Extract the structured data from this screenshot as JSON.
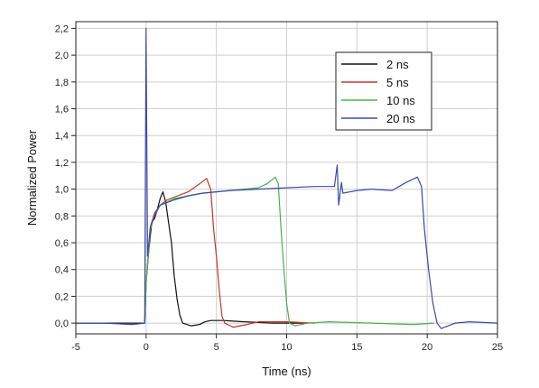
{
  "chart_data": {
    "type": "line",
    "xlabel": "Time (ns)",
    "ylabel": "Normalized Power",
    "xlim": [
      -5,
      25
    ],
    "ylim": [
      -0.08,
      2.25
    ],
    "grid": true,
    "legend_position": "top-right",
    "x_ticks": [
      "-5",
      "0",
      "5",
      "10",
      "15",
      "20",
      "25"
    ],
    "y_ticks": [
      "0,0",
      "0,2",
      "0,4",
      "0,6",
      "0,8",
      "1,0",
      "1,2",
      "1,4",
      "1,6",
      "1,8",
      "2,0",
      "2,2"
    ],
    "series": [
      {
        "name": "2 ns",
        "color": "#111111",
        "points": [
          [
            -5,
            0.0
          ],
          [
            -0.1,
            0.0
          ],
          [
            0,
            0.3
          ],
          [
            0.2,
            0.55
          ],
          [
            0.4,
            0.75
          ],
          [
            0.6,
            0.78
          ],
          [
            0.8,
            0.85
          ],
          [
            1.0,
            0.93
          ],
          [
            1.2,
            0.98
          ],
          [
            1.4,
            0.9
          ],
          [
            1.6,
            0.75
          ],
          [
            1.8,
            0.6
          ],
          [
            2.0,
            0.35
          ],
          [
            2.2,
            0.18
          ],
          [
            2.4,
            0.06
          ],
          [
            2.6,
            0.0
          ],
          [
            3.2,
            -0.02
          ],
          [
            3.8,
            -0.01
          ],
          [
            4.2,
            0.01
          ],
          [
            4.6,
            0.02
          ],
          [
            5.5,
            0.02
          ],
          [
            7,
            0.01
          ],
          [
            9,
            0.0
          ],
          [
            11.5,
            0.0
          ]
        ]
      },
      {
        "name": "5 ns",
        "color": "#c0392b",
        "points": [
          [
            -0.1,
            0.0
          ],
          [
            0,
            0.3
          ],
          [
            0.3,
            0.7
          ],
          [
            0.6,
            0.8
          ],
          [
            1.0,
            0.88
          ],
          [
            1.5,
            0.92
          ],
          [
            2,
            0.94
          ],
          [
            3,
            0.98
          ],
          [
            3.8,
            1.04
          ],
          [
            4.3,
            1.08
          ],
          [
            4.6,
            1.0
          ],
          [
            4.8,
            0.7
          ],
          [
            5.0,
            0.5
          ],
          [
            5.2,
            0.25
          ],
          [
            5.4,
            0.05
          ],
          [
            5.6,
            0.0
          ],
          [
            6.2,
            -0.03
          ],
          [
            7.2,
            -0.01
          ],
          [
            8,
            0.01
          ],
          [
            10,
            0.01
          ],
          [
            12,
            0.0
          ]
        ]
      },
      {
        "name": "10 ns",
        "color": "#4caf50",
        "points": [
          [
            -0.1,
            0.0
          ],
          [
            0,
            0.3
          ],
          [
            0.3,
            0.7
          ],
          [
            0.6,
            0.82
          ],
          [
            1,
            0.88
          ],
          [
            2,
            0.93
          ],
          [
            4,
            0.97
          ],
          [
            6,
            0.99
          ],
          [
            8,
            1.01
          ],
          [
            8.6,
            1.04
          ],
          [
            9.2,
            1.09
          ],
          [
            9.4,
            1.04
          ],
          [
            9.6,
            0.7
          ],
          [
            9.8,
            0.4
          ],
          [
            10,
            0.15
          ],
          [
            10.2,
            0.0
          ],
          [
            10.6,
            -0.02
          ],
          [
            11.5,
            0.0
          ],
          [
            13,
            0.01
          ],
          [
            16,
            0.0
          ],
          [
            19,
            -0.01
          ],
          [
            20.5,
            0.0
          ]
        ]
      },
      {
        "name": "20 ns",
        "color": "#3a4aa8",
        "points": [
          [
            -5,
            0.0
          ],
          [
            -3,
            0.0
          ],
          [
            -1,
            -0.01
          ],
          [
            -0.1,
            0.0
          ],
          [
            0,
            2.2
          ],
          [
            0.1,
            0.5
          ],
          [
            0.3,
            0.72
          ],
          [
            0.6,
            0.82
          ],
          [
            1,
            0.88
          ],
          [
            2,
            0.92
          ],
          [
            3,
            0.95
          ],
          [
            4,
            0.97
          ],
          [
            6,
            0.99
          ],
          [
            8,
            1.0
          ],
          [
            10,
            1.01
          ],
          [
            12,
            1.02
          ],
          [
            13.4,
            1.02
          ],
          [
            13.6,
            1.18
          ],
          [
            13.7,
            0.88
          ],
          [
            13.9,
            1.05
          ],
          [
            14,
            0.97
          ],
          [
            15,
            0.99
          ],
          [
            16,
            1.0
          ],
          [
            17.5,
            0.99
          ],
          [
            18.5,
            1.05
          ],
          [
            19.3,
            1.09
          ],
          [
            19.6,
            1.02
          ],
          [
            19.8,
            0.7
          ],
          [
            20.1,
            0.4
          ],
          [
            20.4,
            0.15
          ],
          [
            20.7,
            0.0
          ],
          [
            21,
            -0.04
          ],
          [
            21.5,
            -0.02
          ],
          [
            22,
            0.0
          ],
          [
            23,
            0.01
          ],
          [
            25,
            0.0
          ]
        ]
      }
    ]
  }
}
